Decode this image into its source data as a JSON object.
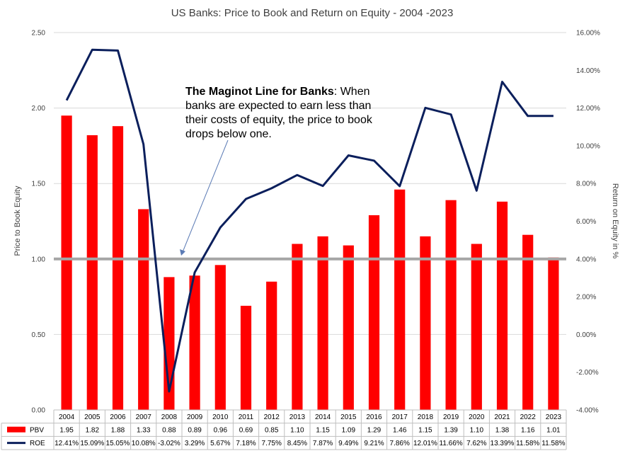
{
  "chart_data": {
    "type": "bar+line",
    "title": "US Banks: Price to Book and Return on Equity - 2004 -2023",
    "categories": [
      "2004",
      "2005",
      "2006",
      "2007",
      "2008",
      "2009",
      "2010",
      "2011",
      "2012",
      "2013",
      "2014",
      "2015",
      "2016",
      "2017",
      "2018",
      "2019",
      "2020",
      "2021",
      "2022",
      "2023"
    ],
    "series": [
      {
        "name": "PBV",
        "kind": "bar",
        "axis": "left",
        "color": "#ff0000",
        "values": [
          1.95,
          1.82,
          1.88,
          1.33,
          0.88,
          0.89,
          0.96,
          0.69,
          0.85,
          1.1,
          1.15,
          1.09,
          1.29,
          1.46,
          1.15,
          1.39,
          1.1,
          1.38,
          1.16,
          1.01
        ],
        "labels": [
          "1.95",
          "1.82",
          "1.88",
          "1.33",
          "0.88",
          "0.89",
          "0.96",
          "0.69",
          "0.85",
          "1.10",
          "1.15",
          "1.09",
          "1.29",
          "1.46",
          "1.15",
          "1.39",
          "1.10",
          "1.38",
          "1.16",
          "1.01"
        ]
      },
      {
        "name": "ROE",
        "kind": "line",
        "axis": "right",
        "color": "#0b1f5c",
        "values": [
          12.41,
          15.09,
          15.05,
          10.08,
          -3.02,
          3.29,
          5.67,
          7.18,
          7.75,
          8.45,
          7.87,
          9.49,
          9.21,
          7.86,
          12.01,
          11.66,
          7.62,
          13.39,
          11.58,
          11.58
        ],
        "labels": [
          "12.41%",
          "15.09%",
          "15.05%",
          "10.08%",
          "-3.02%",
          "3.29%",
          "5.67%",
          "7.18%",
          "7.75%",
          "8.45%",
          "7.87%",
          "9.49%",
          "9.21%",
          "7.86%",
          "12.01%",
          "11.66%",
          "7.62%",
          "13.39%",
          "11.58%",
          "11.58%"
        ]
      }
    ],
    "reference_line": {
      "axis": "left",
      "value": 1.0,
      "color": "#a6a6a6"
    },
    "y_left": {
      "label": "Price to Book Equity",
      "range": [
        0,
        2.5
      ],
      "ticks": [
        "0.00",
        "0.50",
        "1.00",
        "1.50",
        "2.00",
        "2.50"
      ]
    },
    "y_right": {
      "label": "Return on Equity in %",
      "range": [
        -4,
        16
      ],
      "ticks": [
        "-4.00%",
        "-2.00%",
        "0.00%",
        "2.00%",
        "4.00%",
        "6.00%",
        "8.00%",
        "10.00%",
        "12.00%",
        "14.00%",
        "16.00%"
      ]
    },
    "grid": true,
    "legend": "data-table",
    "annotation": {
      "bold": "The Maginot Line for Banks",
      "lines": [
        ": When",
        "banks are expected to earn less than",
        "their costs of equity, the price to book",
        "drops below one."
      ]
    }
  }
}
